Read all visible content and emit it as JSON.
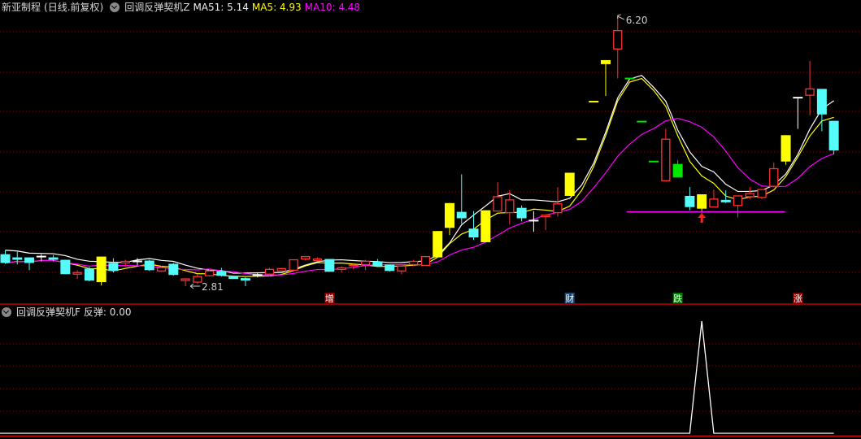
{
  "header": {
    "stock_name": "新亚制程",
    "period": "(日线.前复权)",
    "indicator_name": "回调反弹契机Z",
    "ma_labels": [
      {
        "label": "MA51",
        "value": "5.14",
        "color": "#f0f0f0"
      },
      {
        "label": "MA5",
        "value": "4.93",
        "color": "#ffff00"
      },
      {
        "label": "MA10",
        "value": "4.48",
        "color": "#ff00ff"
      }
    ]
  },
  "sub_panel": {
    "indicator_name": "回调反弹契机F",
    "value_label": "反弹",
    "value": "0.00"
  },
  "colors": {
    "up_hollow": "#ff3232",
    "down": "#54fcfc",
    "strong_up": "#ffff00",
    "strong_down": "#00e600",
    "doji": "#ffffff",
    "grid": "#9a0000",
    "separator": "#c00000",
    "support": "#ff00ff"
  },
  "chart_data": {
    "type": "candlestick",
    "price_high_label": "6.20",
    "price_low_label": "2.81",
    "high_candle": 51,
    "low_candle": 15,
    "candles": [
      [
        "cyan",
        3.21,
        3.26,
        3.09,
        3.1
      ],
      [
        "cyan",
        3.17,
        3.24,
        3.08,
        3.14
      ],
      [
        "cyan",
        3.17,
        3.17,
        3.01,
        3.1
      ],
      [
        "white",
        3.18,
        3.21,
        3.12,
        3.18
      ],
      [
        "cyan",
        3.17,
        3.2,
        3.12,
        3.14
      ],
      [
        "cyan",
        3.14,
        3.14,
        2.96,
        2.96
      ],
      [
        "red",
        2.96,
        3.01,
        2.9,
        2.98
      ],
      [
        "cyan",
        3.03,
        3.05,
        2.87,
        2.88
      ],
      [
        "yellow",
        2.86,
        3.18,
        2.82,
        3.18
      ],
      [
        "cyan",
        3.1,
        3.16,
        2.98,
        3.0
      ],
      [
        "red",
        3.1,
        3.14,
        3.05,
        3.12
      ],
      [
        "white",
        3.12,
        3.16,
        3.07,
        3.12
      ],
      [
        "cyan",
        3.13,
        3.14,
        3.0,
        3.01
      ],
      [
        "red",
        3.0,
        3.06,
        2.99,
        3.04
      ],
      [
        "cyan",
        3.09,
        3.1,
        2.94,
        2.95
      ],
      [
        "red",
        2.88,
        2.91,
        2.81,
        2.9
      ],
      [
        "red",
        2.86,
        2.96,
        2.84,
        2.93
      ],
      [
        "red",
        2.94,
        3.02,
        2.93,
        3.0
      ],
      [
        "cyan",
        3.0,
        3.04,
        2.93,
        2.94
      ],
      [
        "cyan",
        2.93,
        2.93,
        2.9,
        2.9
      ],
      [
        "cyan",
        2.91,
        2.92,
        2.81,
        2.88
      ],
      [
        "white",
        2.95,
        2.97,
        2.92,
        2.95
      ],
      [
        "red",
        2.96,
        3.04,
        2.93,
        3.02
      ],
      [
        "red",
        3.0,
        3.04,
        2.99,
        3.03
      ],
      [
        "red",
        3.01,
        3.14,
        3.01,
        3.14
      ],
      [
        "red",
        3.15,
        3.18,
        3.13,
        3.18
      ],
      [
        "red",
        3.13,
        3.17,
        3.12,
        3.15
      ],
      [
        "cyan",
        3.15,
        3.15,
        2.99,
        2.99
      ],
      [
        "red",
        3.02,
        3.06,
        2.98,
        3.04
      ],
      [
        "red",
        3.06,
        3.09,
        3.02,
        3.07
      ],
      [
        "red",
        3.08,
        3.14,
        3.01,
        3.12
      ],
      [
        "cyan",
        3.12,
        3.15,
        3.05,
        3.06
      ],
      [
        "cyan",
        3.08,
        3.08,
        2.99,
        3.0
      ],
      [
        "red",
        3.0,
        3.07,
        2.96,
        3.06
      ],
      [
        "red",
        3.08,
        3.14,
        3.06,
        3.12
      ],
      [
        "red",
        3.07,
        3.19,
        3.07,
        3.18
      ],
      [
        "yellow",
        3.17,
        3.5,
        3.17,
        3.5
      ],
      [
        "yellow",
        3.54,
        3.85,
        3.45,
        3.85
      ],
      [
        "cyan",
        3.74,
        4.21,
        3.59,
        3.66
      ],
      [
        "cyan",
        3.53,
        3.75,
        3.39,
        3.42
      ],
      [
        "yellow",
        3.36,
        3.76,
        3.36,
        3.76
      ],
      [
        "red",
        3.75,
        4.11,
        3.75,
        3.93
      ],
      [
        "red",
        3.73,
        4.01,
        3.58,
        3.89
      ],
      [
        "cyan",
        3.79,
        3.82,
        3.62,
        3.66
      ],
      [
        "white",
        3.63,
        3.75,
        3.49,
        3.63
      ],
      [
        "red",
        3.68,
        3.7,
        3.51,
        3.7
      ],
      [
        "red",
        3.73,
        4.05,
        3.68,
        3.84
      ],
      [
        "yellow",
        3.94,
        4.23,
        3.94,
        4.23
      ],
      [
        "yellow",
        4.65,
        4.65,
        4.65,
        4.65
      ],
      [
        "yellow",
        5.12,
        5.12,
        5.12,
        5.12
      ],
      [
        "yellow",
        5.59,
        5.64,
        5.19,
        5.64
      ],
      [
        "red",
        5.78,
        6.2,
        5.41,
        6.01
      ],
      [
        "green",
        5.41,
        5.41,
        5.41,
        5.41
      ],
      [
        "green",
        4.87,
        4.87,
        4.87,
        4.87
      ],
      [
        "green",
        4.37,
        4.37,
        4.37,
        4.37
      ],
      [
        "red",
        4.13,
        4.78,
        4.13,
        4.65
      ],
      [
        "green",
        4.34,
        4.39,
        4.17,
        4.17
      ],
      [
        "cyan",
        3.94,
        4.05,
        3.76,
        3.8
      ],
      [
        "yellow",
        3.78,
        3.96,
        3.75,
        3.96
      ],
      [
        "red",
        3.8,
        4.02,
        3.8,
        3.9
      ],
      [
        "cyan",
        3.89,
        4.01,
        3.85,
        3.86
      ],
      [
        "red",
        3.82,
        3.94,
        3.67,
        3.94
      ],
      [
        "red",
        3.93,
        4.05,
        3.9,
        3.97
      ],
      [
        "red",
        3.92,
        4.02,
        3.9,
        4.02
      ],
      [
        "red",
        4.06,
        4.36,
        4.06,
        4.28
      ],
      [
        "yellow",
        4.37,
        4.7,
        4.33,
        4.7
      ],
      [
        "white",
        5.17,
        5.17,
        4.78,
        5.17
      ],
      [
        "red",
        5.2,
        5.63,
        4.95,
        5.28
      ],
      [
        "cyan",
        5.28,
        5.28,
        4.75,
        4.96
      ],
      [
        "cyan",
        4.88,
        4.88,
        4.46,
        4.51
      ]
    ],
    "candle_fields": [
      "color",
      "open",
      "high",
      "low",
      "close"
    ],
    "support_line": {
      "price": 3.74,
      "from_candle": 52,
      "to_candle": 64
    },
    "signal_arrow_candle": 58,
    "markers": [
      {
        "text": "增",
        "candle": 27,
        "bg": "#8b0000",
        "fg": "#ffffff"
      },
      {
        "text": "财",
        "candle": 47,
        "bg": "#1a4a7a",
        "fg": "#ffffff"
      },
      {
        "text": "跌",
        "candle": 56,
        "bg": "#007a00",
        "fg": "#ffffff"
      },
      {
        "text": "涨",
        "candle": 66,
        "bg": "#8b0000",
        "fg": "#ffffff"
      }
    ],
    "rebound_series": {
      "name": "反弹",
      "values_nonzero": {
        "58": 1
      },
      "length": 70
    }
  }
}
